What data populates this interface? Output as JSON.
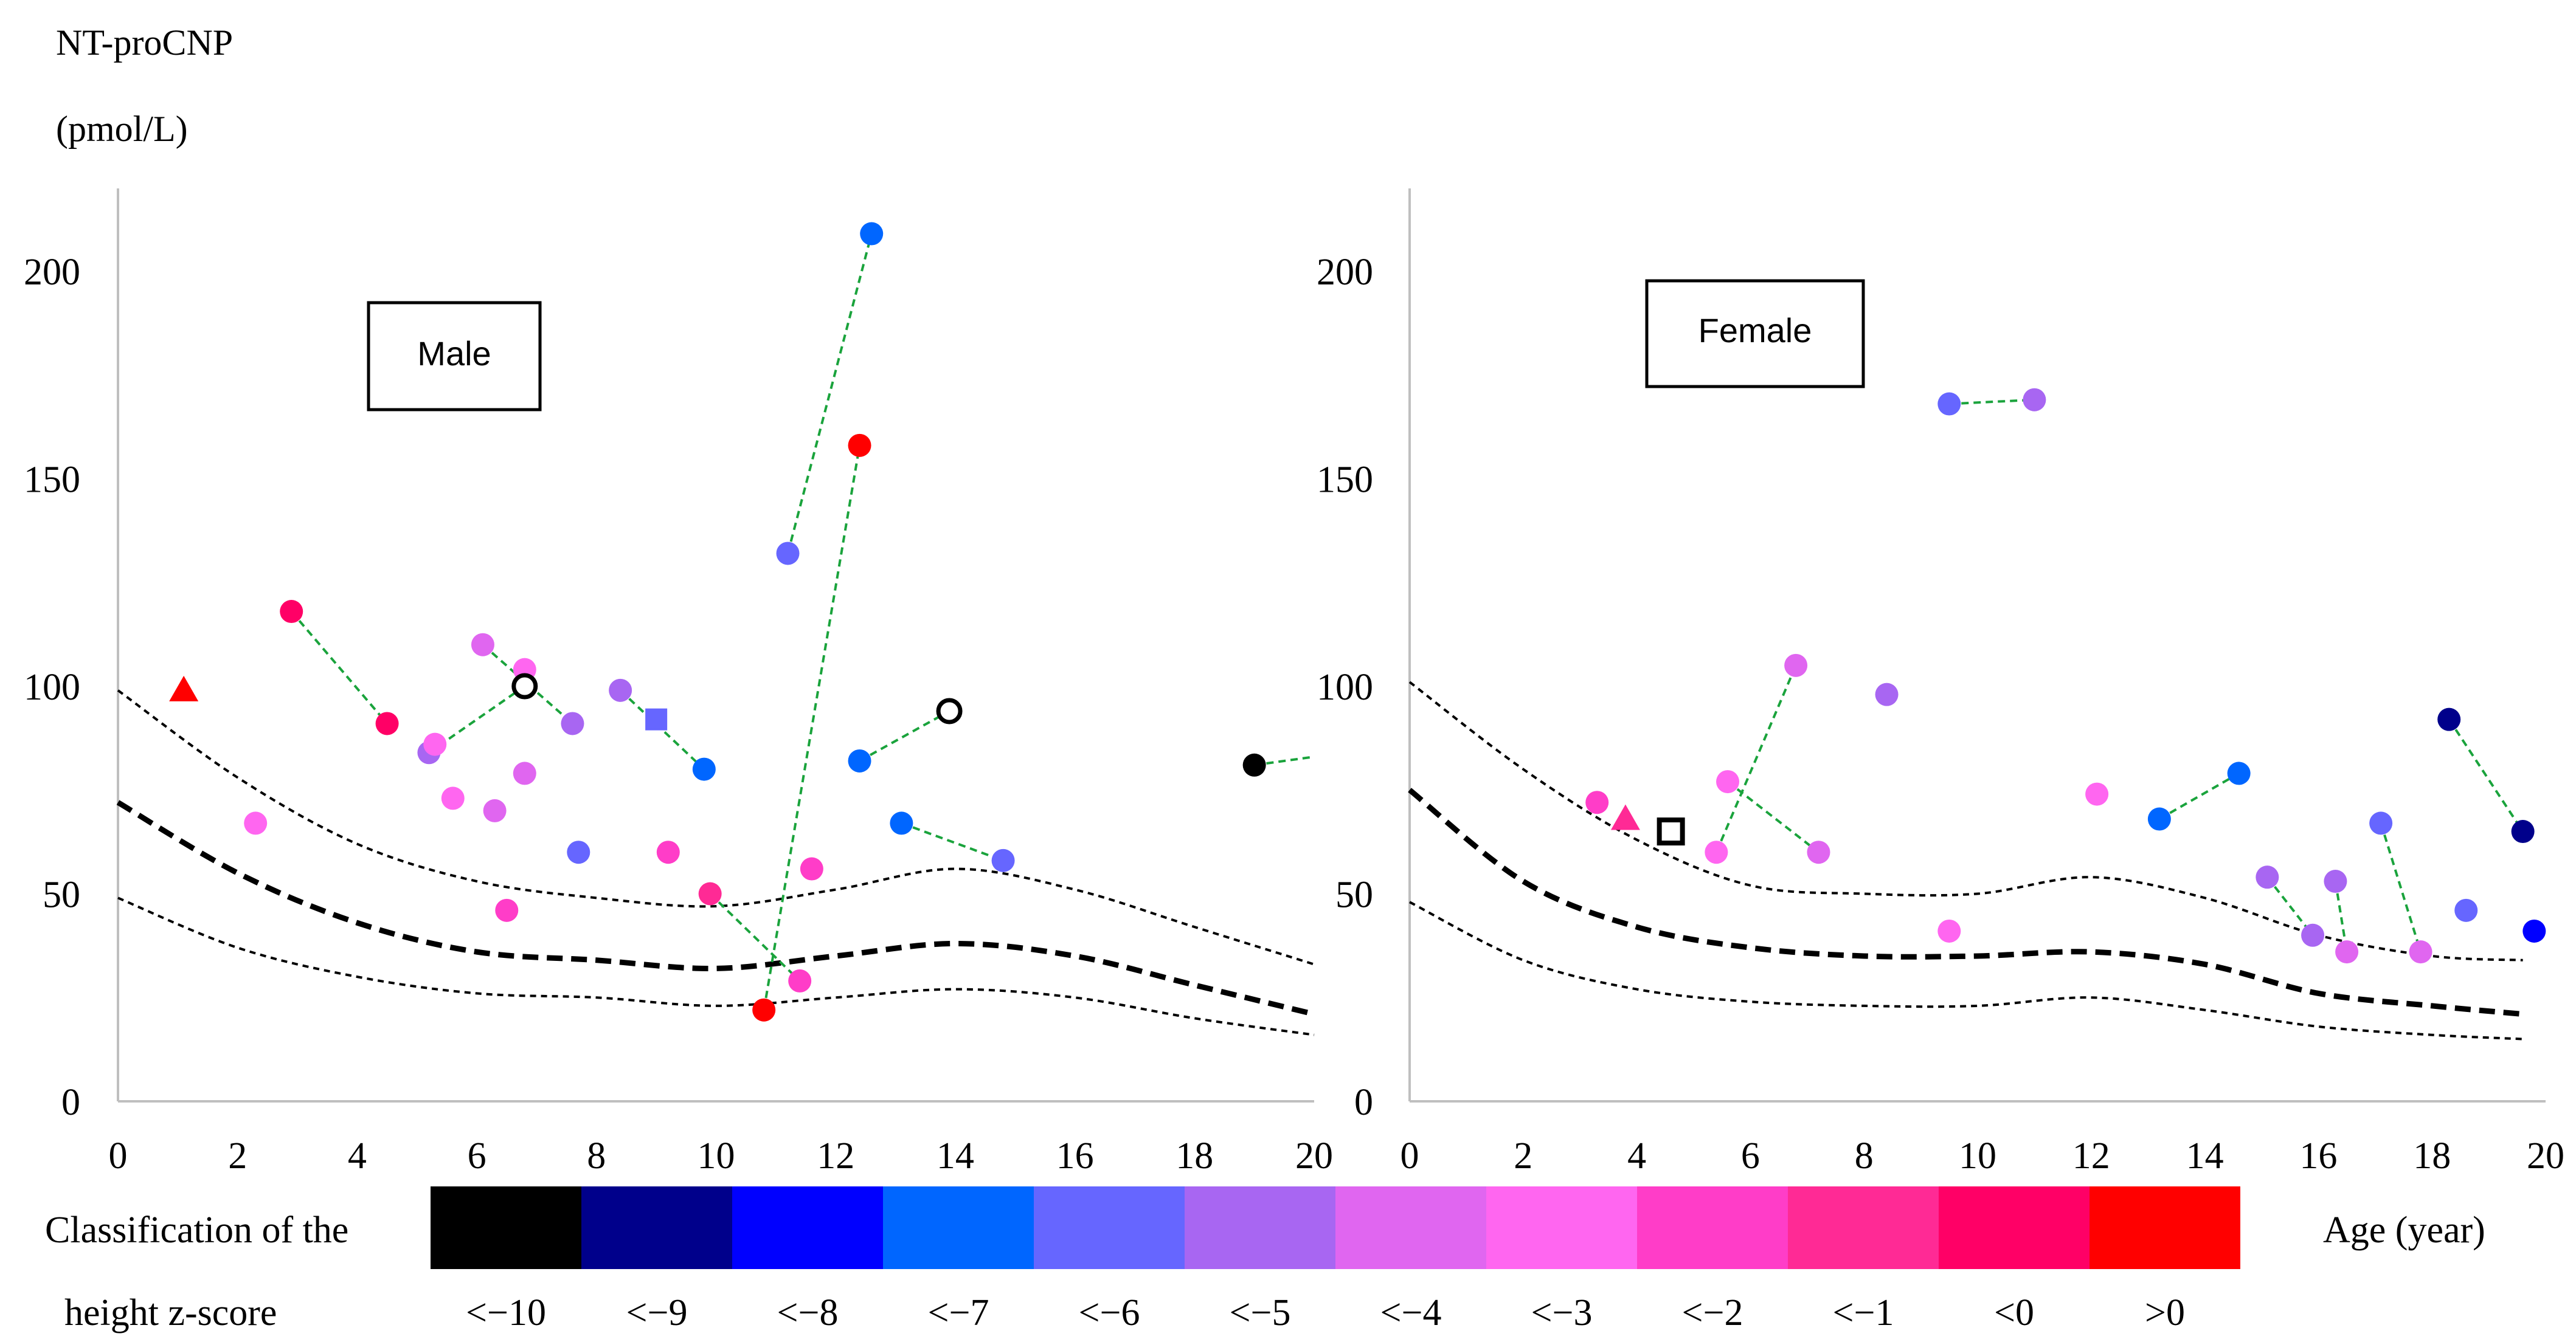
{
  "chart_data": {
    "type": "scatter",
    "ylabel_line1": "NT-proCNP",
    "ylabel_line2": "(pmol/L)",
    "xlabel": "Age (year)",
    "legend_title_line1": "Classification of the",
    "legend_title_line2": "height z-score",
    "xlim": [
      0,
      20
    ],
    "ylim": [
      0,
      220
    ],
    "x_ticks": [
      "0",
      "2",
      "4",
      "6",
      "8",
      "10",
      "12",
      "14",
      "16",
      "18",
      "20"
    ],
    "y_ticks": [
      "0",
      "50",
      "100",
      "150",
      "200"
    ],
    "x_tick_values": [
      0,
      2,
      4,
      6,
      8,
      10,
      12,
      14,
      16,
      18,
      20
    ],
    "y_tick_values": [
      0,
      50,
      100,
      150,
      200
    ],
    "legend": [
      {
        "label": "<−10",
        "color": "#000000"
      },
      {
        "label": "<−9",
        "color": "#00008B"
      },
      {
        "label": "<−8",
        "color": "#0000FF"
      },
      {
        "label": "<−7",
        "color": "#0066FF"
      },
      {
        "label": "<−6",
        "color": "#6666FF"
      },
      {
        "label": "<−5",
        "color": "#A866F2"
      },
      {
        "label": "<−4",
        "color": "#E066F0"
      },
      {
        "label": "<−3",
        "color": "#FF66F0"
      },
      {
        "label": "<−2",
        "color": "#FF3DC8"
      },
      {
        "label": "<−1",
        "color": "#FF2A95"
      },
      {
        "label": "<0",
        "color": "#FF0066"
      },
      {
        "label": ">0",
        "color": "#FF0000"
      }
    ],
    "panels": [
      {
        "title": "Male",
        "reference_lines": {
          "upper": [
            [
              0,
              99
            ],
            [
              2,
              78
            ],
            [
              4,
              62
            ],
            [
              6,
              53
            ],
            [
              8,
              49
            ],
            [
              10,
              47
            ],
            [
              12,
              51
            ],
            [
              14,
              56
            ],
            [
              16,
              51
            ],
            [
              18,
              42
            ],
            [
              20,
              33
            ]
          ],
          "median": [
            [
              0,
              72
            ],
            [
              2,
              55
            ],
            [
              4,
              43
            ],
            [
              6,
              36
            ],
            [
              8,
              34
            ],
            [
              10,
              32
            ],
            [
              12,
              35
            ],
            [
              14,
              38
            ],
            [
              16,
              35
            ],
            [
              18,
              28
            ],
            [
              20,
              21
            ]
          ],
          "lower": [
            [
              0,
              49
            ],
            [
              2,
              37
            ],
            [
              4,
              30
            ],
            [
              6,
              26
            ],
            [
              8,
              25
            ],
            [
              10,
              23
            ],
            [
              12,
              25
            ],
            [
              14,
              27
            ],
            [
              16,
              25
            ],
            [
              18,
              20
            ],
            [
              20,
              16
            ]
          ]
        },
        "points": [
          {
            "x": 1.1,
            "y": 99,
            "shape": "triangle",
            "color": "#FF0000"
          },
          {
            "x": 2.3,
            "y": 67,
            "shape": "circle",
            "color": "#FF66F0"
          },
          {
            "x": 2.9,
            "y": 118,
            "shape": "circle",
            "color": "#FF0066"
          },
          {
            "x": 4.5,
            "y": 91,
            "shape": "circle",
            "color": "#FF0066"
          },
          {
            "x": 5.2,
            "y": 84,
            "shape": "circle",
            "color": "#A866F2"
          },
          {
            "x": 5.3,
            "y": 86,
            "shape": "circle",
            "color": "#FF66F0"
          },
          {
            "x": 5.6,
            "y": 73,
            "shape": "circle",
            "color": "#FF66F0"
          },
          {
            "x": 6.1,
            "y": 110,
            "shape": "circle",
            "color": "#E066F0"
          },
          {
            "x": 6.3,
            "y": 70,
            "shape": "circle",
            "color": "#E066F0"
          },
          {
            "x": 6.5,
            "y": 46,
            "shape": "circle",
            "color": "#FF3DC8"
          },
          {
            "x": 6.8,
            "y": 104,
            "shape": "circle",
            "color": "#FF66F0"
          },
          {
            "x": 6.8,
            "y": 100,
            "shape": "open-circle",
            "color": "#000000"
          },
          {
            "x": 6.8,
            "y": 79,
            "shape": "circle",
            "color": "#E066F0"
          },
          {
            "x": 7.6,
            "y": 91,
            "shape": "circle",
            "color": "#A866F2"
          },
          {
            "x": 7.7,
            "y": 60,
            "shape": "circle",
            "color": "#6666FF"
          },
          {
            "x": 8.4,
            "y": 99,
            "shape": "circle",
            "color": "#A866F2"
          },
          {
            "x": 9.0,
            "y": 92,
            "shape": "square",
            "color": "#6666FF"
          },
          {
            "x": 9.2,
            "y": 60,
            "shape": "circle",
            "color": "#FF3DC8"
          },
          {
            "x": 9.8,
            "y": 80,
            "shape": "circle",
            "color": "#0066FF"
          },
          {
            "x": 9.9,
            "y": 50,
            "shape": "circle",
            "color": "#FF2A95"
          },
          {
            "x": 10.8,
            "y": 22,
            "shape": "circle",
            "color": "#FF0000"
          },
          {
            "x": 11.2,
            "y": 132,
            "shape": "circle",
            "color": "#6666FF"
          },
          {
            "x": 11.4,
            "y": 29,
            "shape": "circle",
            "color": "#FF3DC8"
          },
          {
            "x": 11.6,
            "y": 56,
            "shape": "circle",
            "color": "#FF3DC8"
          },
          {
            "x": 12.4,
            "y": 158,
            "shape": "circle",
            "color": "#FF0000"
          },
          {
            "x": 12.4,
            "y": 82,
            "shape": "circle",
            "color": "#0066FF"
          },
          {
            "x": 12.6,
            "y": 209,
            "shape": "circle",
            "color": "#0066FF"
          },
          {
            "x": 13.1,
            "y": 67,
            "shape": "circle",
            "color": "#0066FF"
          },
          {
            "x": 13.9,
            "y": 94,
            "shape": "open-circle",
            "color": "#000000"
          },
          {
            "x": 14.8,
            "y": 58,
            "shape": "circle",
            "color": "#6666FF"
          },
          {
            "x": 19.0,
            "y": 81,
            "shape": "circle",
            "color": "#000000"
          }
        ],
        "links": [
          [
            [
              2.9,
              118
            ],
            [
              4.5,
              91
            ]
          ],
          [
            [
              5.2,
              84
            ],
            [
              6.8,
              100
            ]
          ],
          [
            [
              6.1,
              110
            ],
            [
              7.6,
              91
            ]
          ],
          [
            [
              8.4,
              99
            ],
            [
              9.8,
              80
            ]
          ],
          [
            [
              9.9,
              50
            ],
            [
              11.4,
              29
            ]
          ],
          [
            [
              11.2,
              132
            ],
            [
              12.6,
              209
            ]
          ],
          [
            [
              10.8,
              22
            ],
            [
              12.4,
              158
            ]
          ],
          [
            [
              12.4,
              82
            ],
            [
              13.9,
              94
            ]
          ],
          [
            [
              13.1,
              67
            ],
            [
              14.8,
              58
            ]
          ],
          [
            [
              19.0,
              81
            ],
            [
              20,
              83
            ]
          ]
        ]
      },
      {
        "title": "Female",
        "reference_lines": {
          "upper": [
            [
              0,
              101
            ],
            [
              2,
              80
            ],
            [
              4,
              63
            ],
            [
              6,
              52
            ],
            [
              8,
              50
            ],
            [
              10,
              50
            ],
            [
              12,
              54
            ],
            [
              14,
              49
            ],
            [
              16,
              40
            ],
            [
              18,
              35
            ],
            [
              19.6,
              34
            ]
          ],
          "median": [
            [
              0,
              75
            ],
            [
              2,
              53
            ],
            [
              4,
              42
            ],
            [
              6,
              37
            ],
            [
              8,
              35
            ],
            [
              10,
              35
            ],
            [
              12,
              36
            ],
            [
              14,
              33
            ],
            [
              16,
              26
            ],
            [
              18,
              23
            ],
            [
              19.6,
              21
            ]
          ],
          "lower": [
            [
              0,
              48
            ],
            [
              2,
              34
            ],
            [
              4,
              27
            ],
            [
              6,
              24
            ],
            [
              8,
              23
            ],
            [
              10,
              23
            ],
            [
              12,
              25
            ],
            [
              14,
              22
            ],
            [
              16,
              18
            ],
            [
              18,
              16
            ],
            [
              19.6,
              15
            ]
          ]
        },
        "points": [
          {
            "x": 3.3,
            "y": 72,
            "shape": "circle",
            "color": "#FF3DC8"
          },
          {
            "x": 3.8,
            "y": 68,
            "shape": "triangle",
            "color": "#FF2A95"
          },
          {
            "x": 4.6,
            "y": 65,
            "shape": "open-square",
            "color": "#000000"
          },
          {
            "x": 5.4,
            "y": 60,
            "shape": "circle",
            "color": "#FF66F0"
          },
          {
            "x": 5.6,
            "y": 77,
            "shape": "circle",
            "color": "#FF66F0"
          },
          {
            "x": 6.8,
            "y": 105,
            "shape": "circle",
            "color": "#E066F0"
          },
          {
            "x": 7.2,
            "y": 60,
            "shape": "circle",
            "color": "#E066F0"
          },
          {
            "x": 8.4,
            "y": 98,
            "shape": "circle",
            "color": "#A866F2"
          },
          {
            "x": 9.5,
            "y": 168,
            "shape": "circle",
            "color": "#6666FF"
          },
          {
            "x": 9.5,
            "y": 41,
            "shape": "circle",
            "color": "#FF66F0"
          },
          {
            "x": 11.0,
            "y": 169,
            "shape": "circle",
            "color": "#A866F2"
          },
          {
            "x": 12.1,
            "y": 74,
            "shape": "circle",
            "color": "#FF66F0"
          },
          {
            "x": 13.2,
            "y": 68,
            "shape": "circle",
            "color": "#0066FF"
          },
          {
            "x": 14.6,
            "y": 79,
            "shape": "circle",
            "color": "#0066FF"
          },
          {
            "x": 15.1,
            "y": 54,
            "shape": "circle",
            "color": "#A866F2"
          },
          {
            "x": 15.9,
            "y": 40,
            "shape": "circle",
            "color": "#A866F2"
          },
          {
            "x": 16.3,
            "y": 53,
            "shape": "circle",
            "color": "#A866F2"
          },
          {
            "x": 16.5,
            "y": 36,
            "shape": "circle",
            "color": "#E066F0"
          },
          {
            "x": 17.1,
            "y": 67,
            "shape": "circle",
            "color": "#6666FF"
          },
          {
            "x": 17.8,
            "y": 36,
            "shape": "circle",
            "color": "#E066F0"
          },
          {
            "x": 18.3,
            "y": 92,
            "shape": "circle",
            "color": "#00008B"
          },
          {
            "x": 18.6,
            "y": 46,
            "shape": "circle",
            "color": "#6666FF"
          },
          {
            "x": 19.6,
            "y": 65,
            "shape": "circle",
            "color": "#00008B"
          },
          {
            "x": 19.8,
            "y": 41,
            "shape": "circle",
            "color": "#0000FF"
          }
        ],
        "links": [
          [
            [
              5.4,
              60
            ],
            [
              6.8,
              105
            ]
          ],
          [
            [
              5.6,
              77
            ],
            [
              7.2,
              60
            ]
          ],
          [
            [
              9.5,
              168
            ],
            [
              11.0,
              169
            ]
          ],
          [
            [
              13.2,
              68
            ],
            [
              14.6,
              79
            ]
          ],
          [
            [
              15.1,
              54
            ],
            [
              15.9,
              40
            ]
          ],
          [
            [
              16.3,
              53
            ],
            [
              16.5,
              36
            ]
          ],
          [
            [
              17.1,
              67
            ],
            [
              17.8,
              36
            ]
          ],
          [
            [
              18.3,
              92
            ],
            [
              19.6,
              65
            ]
          ],
          [
            [
              19.8,
              41
            ],
            [
              20,
              40
            ]
          ]
        ]
      }
    ]
  }
}
